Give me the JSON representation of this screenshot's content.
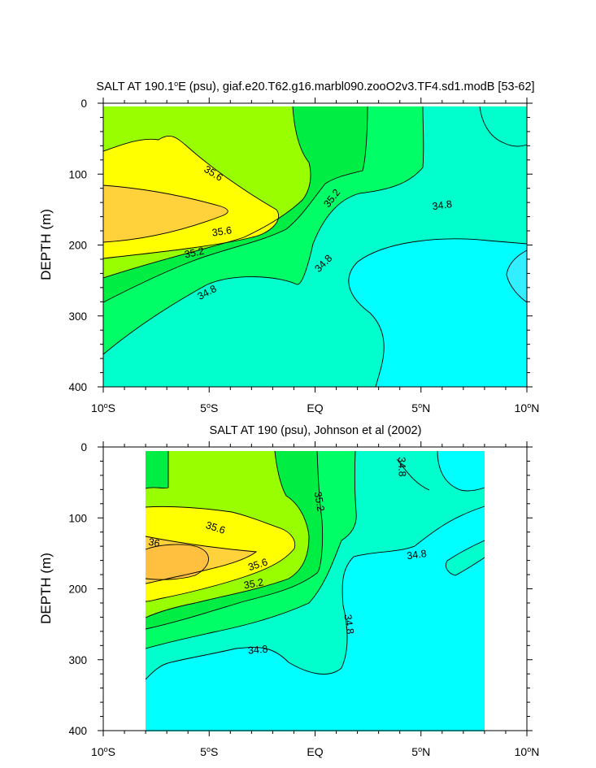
{
  "colors": {
    "c_lt_34_8": "#00ffff",
    "c_34_8_35_0": "#00ffcc",
    "c_35_0_35_2": "#00ff66",
    "c_35_2_35_4": "#00ee44",
    "c_35_4_35_6": "#99ff00",
    "c_35_6_35_8": "#ffff00",
    "c_35_8_36_0": "#ffd23c",
    "c_gt_36_0": "#ffc040",
    "blue_patch": "#33eeff"
  },
  "chart_data": [
    {
      "type": "contour",
      "title": "SALT AT 190.1°E (psu), giaf.e20.T62.g16.marbl090.zooO2v3.TF4.sd1.modB [53-62]",
      "title_parts": {
        "before": "SALT AT 190.1",
        "sup": "o",
        "after": "E (psu), giaf.e20.T62.g16.marbl090.zooO2v3.TF4.sd1.modB [53-62]"
      },
      "variable": "SALT",
      "units": "psu",
      "xlabel": "",
      "ylabel": "DEPTH (m)",
      "xlim": [
        -10,
        10
      ],
      "ylim": [
        400,
        0
      ],
      "y_inverted": true,
      "x_ticks": [
        {
          "value": -10,
          "num": "10",
          "sup": "o",
          "hem": "S"
        },
        {
          "value": -5,
          "num": "5",
          "sup": "o",
          "hem": "S"
        },
        {
          "value": 0,
          "num": "EQ",
          "sup": "",
          "hem": ""
        },
        {
          "value": 5,
          "num": "5",
          "sup": "o",
          "hem": "N"
        },
        {
          "value": 10,
          "num": "10",
          "sup": "o",
          "hem": "N"
        }
      ],
      "y_ticks": [
        "0",
        "100",
        "200",
        "300",
        "400"
      ],
      "y_tick_values": [
        0,
        100,
        200,
        300,
        400
      ],
      "data_x_range": [
        -10,
        10
      ],
      "data_depth_range": [
        5,
        400
      ],
      "contour_levels": [
        34.8,
        35.0,
        35.2,
        35.4,
        35.6,
        35.8,
        36.0
      ],
      "contour_labels": [
        {
          "text": "35.6",
          "lat": -4.8,
          "depth": 99,
          "angle": 32
        },
        {
          "text": "35.2",
          "lat": 0.8,
          "depth": 134,
          "angle": -52
        },
        {
          "text": "34.8",
          "lat": 6.0,
          "depth": 144,
          "angle": -8
        },
        {
          "text": "35.6",
          "lat": -4.4,
          "depth": 181,
          "angle": -8
        },
        {
          "text": "35.2",
          "lat": -5.7,
          "depth": 211,
          "angle": -12
        },
        {
          "text": "34.8",
          "lat": 0.4,
          "depth": 226,
          "angle": -45
        },
        {
          "text": "34.8",
          "lat": -5.1,
          "depth": 267,
          "angle": -28
        }
      ]
    },
    {
      "type": "contour",
      "title": "SALT AT 190 (psu), Johnson et al (2002)",
      "title_parts": {
        "before": "SALT AT 190 (psu), Johnson et al (2002)",
        "sup": "",
        "after": ""
      },
      "variable": "SALT",
      "units": "psu",
      "xlabel": "",
      "ylabel": "DEPTH (m)",
      "xlim": [
        -10,
        10
      ],
      "ylim": [
        400,
        0
      ],
      "y_inverted": true,
      "x_ticks": [
        {
          "value": -10,
          "num": "10",
          "sup": "o",
          "hem": "S"
        },
        {
          "value": -5,
          "num": "5",
          "sup": "o",
          "hem": "S"
        },
        {
          "value": 0,
          "num": "EQ",
          "sup": "",
          "hem": ""
        },
        {
          "value": 5,
          "num": "5",
          "sup": "o",
          "hem": "N"
        },
        {
          "value": 10,
          "num": "10",
          "sup": "o",
          "hem": "N"
        }
      ],
      "y_ticks": [
        "0",
        "100",
        "200",
        "300",
        "400"
      ],
      "y_tick_values": [
        0,
        100,
        200,
        300,
        400
      ],
      "data_x_range": [
        -8,
        8
      ],
      "data_depth_range": [
        5,
        400
      ],
      "contour_levels": [
        34.8,
        35.0,
        35.2,
        35.4,
        35.6,
        35.8,
        36.0
      ],
      "contour_labels": [
        {
          "text": "34.8",
          "lat": 4.1,
          "depth": 28,
          "angle": 88
        },
        {
          "text": "35.2",
          "lat": 0.2,
          "depth": 77,
          "angle": 80
        },
        {
          "text": "35.6",
          "lat": -4.7,
          "depth": 114,
          "angle": 18
        },
        {
          "text": "36",
          "lat": -7.6,
          "depth": 135,
          "angle": 10
        },
        {
          "text": "34.8",
          "lat": 4.8,
          "depth": 152,
          "angle": -8
        },
        {
          "text": "35.6",
          "lat": -2.7,
          "depth": 166,
          "angle": -18
        },
        {
          "text": "35.2",
          "lat": -2.9,
          "depth": 193,
          "angle": -10
        },
        {
          "text": "34.8",
          "lat": 1.6,
          "depth": 250,
          "angle": 82
        },
        {
          "text": "34.8",
          "lat": -2.7,
          "depth": 286,
          "angle": -5
        }
      ]
    }
  ]
}
